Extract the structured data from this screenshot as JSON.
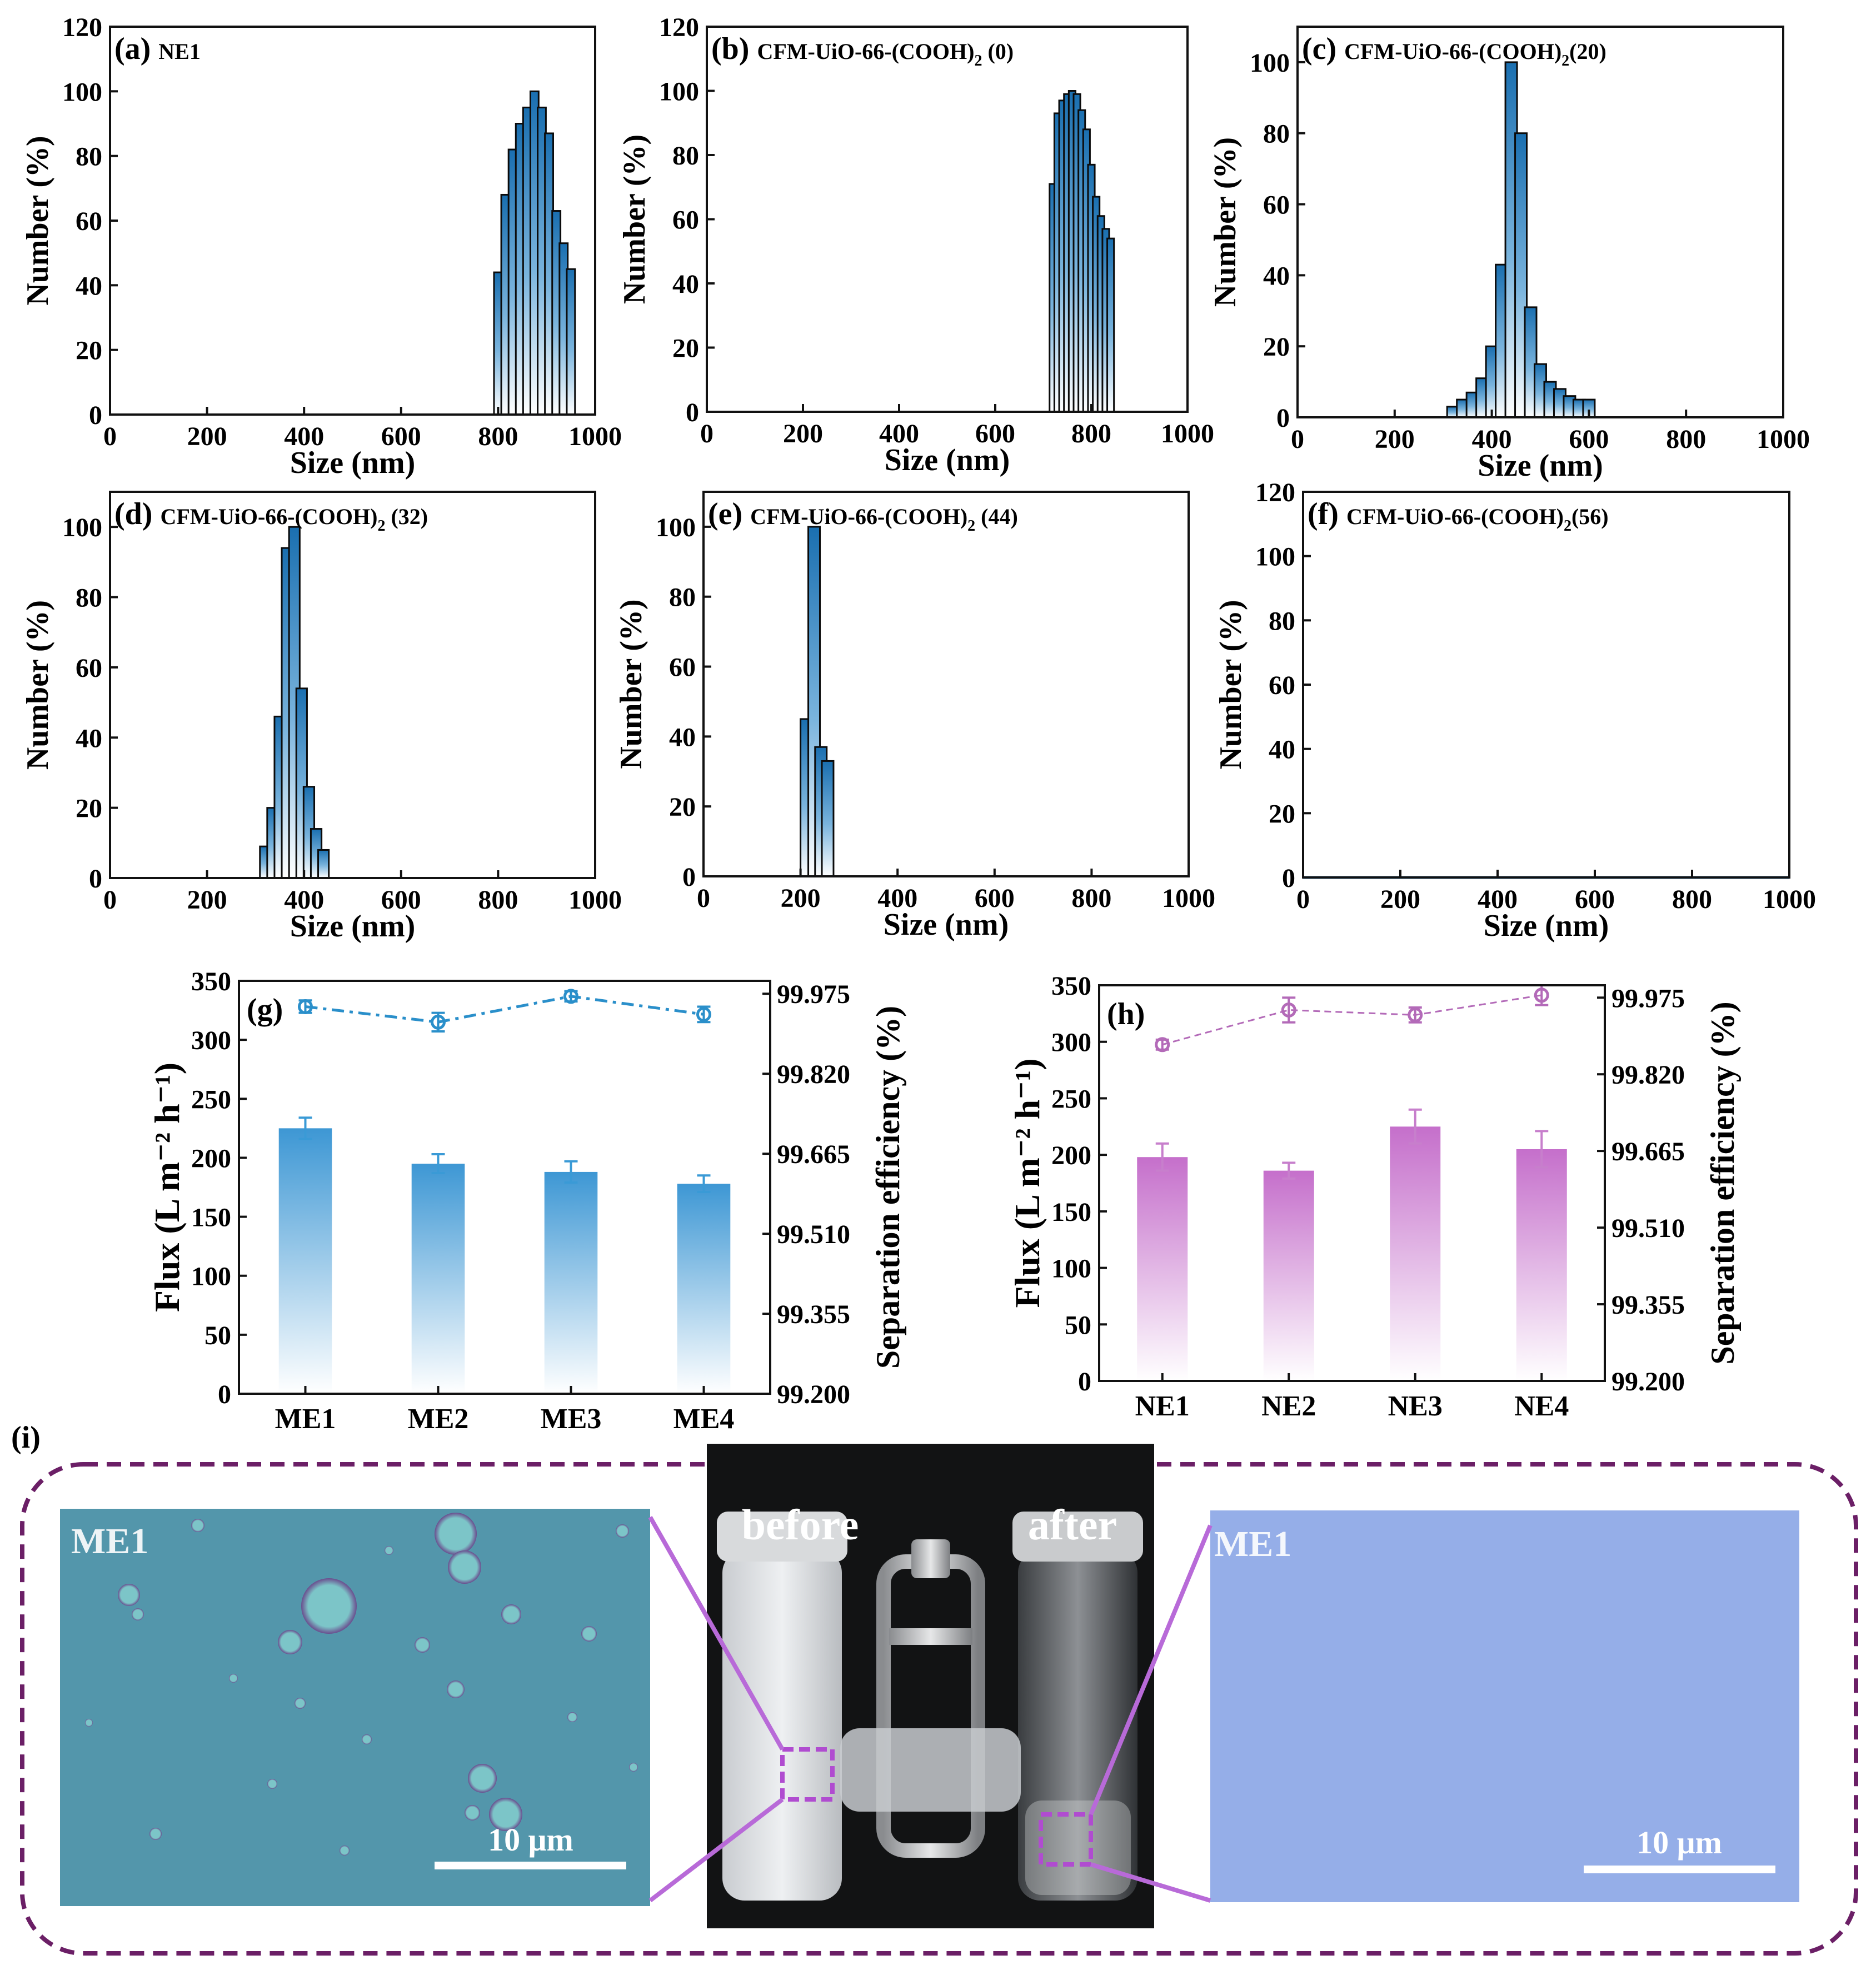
{
  "figure": {
    "accent_blue": "#1f7fc4",
    "accent_purple": "#c070c8",
    "frame_purple": "#6b1f66"
  },
  "chart_data": [
    {
      "id": "a",
      "type": "bar",
      "title": "NE1",
      "panel_label": "(a)",
      "xlabel": "Size (nm)",
      "ylabel": "Number (%)",
      "xlim": [
        0,
        1000
      ],
      "ylim": [
        0,
        120
      ],
      "xticks": [
        0,
        200,
        400,
        600,
        800,
        1000
      ],
      "yticks": [
        0,
        20,
        40,
        60,
        80,
        100,
        120
      ],
      "bar_width_nm": 17,
      "x": [
        800,
        815,
        830,
        845,
        860,
        875,
        890,
        905,
        920,
        935,
        950
      ],
      "values": [
        44,
        68,
        82,
        90,
        95,
        100,
        95,
        87,
        63,
        53,
        45
      ]
    },
    {
      "id": "b",
      "type": "bar",
      "title": "CFM-UiO-66-(COOH)",
      "subscript": "2",
      "title_suffix": " (0)",
      "panel_label": "(b)",
      "xlabel": "Size (nm)",
      "ylabel": "Number (%)",
      "xlim": [
        0,
        1000
      ],
      "ylim": [
        0,
        120
      ],
      "xticks": [
        0,
        200,
        400,
        600,
        800,
        1000
      ],
      "yticks": [
        0,
        20,
        40,
        60,
        80,
        100,
        120
      ],
      "bar_width_nm": 14,
      "x": [
        720,
        730,
        740,
        750,
        760,
        770,
        780,
        790,
        800,
        810,
        820,
        830,
        840
      ],
      "values": [
        71,
        93,
        97,
        99,
        100,
        99,
        94,
        88,
        77,
        67,
        61,
        57,
        54
      ]
    },
    {
      "id": "c",
      "type": "bar",
      "title": "CFM-UiO-66-(COOH)",
      "subscript": "2",
      "title_suffix": "(20)",
      "panel_label": "(c)",
      "xlabel": "Size (nm)",
      "ylabel": "Number (%)",
      "xlim": [
        0,
        1000
      ],
      "ylim": [
        0,
        110
      ],
      "xticks": [
        0,
        200,
        400,
        600,
        800,
        1000
      ],
      "yticks": [
        0,
        20,
        40,
        60,
        80,
        100
      ],
      "bar_width_nm": 24,
      "x": [
        320,
        340,
        360,
        380,
        400,
        420,
        440,
        460,
        480,
        500,
        520,
        540,
        560,
        580,
        600
      ],
      "values": [
        3,
        5,
        7,
        11,
        20,
        43,
        100,
        80,
        31,
        15,
        10,
        8,
        6,
        5,
        5
      ]
    },
    {
      "id": "d",
      "type": "bar",
      "title": "CFM-UiO-66-(COOH)",
      "subscript": "2",
      "title_suffix": " (32)",
      "panel_label": "(d)",
      "xlabel": "Size (nm)",
      "ylabel": "Number (%)",
      "xlim": [
        0,
        1000
      ],
      "ylim": [
        0,
        110
      ],
      "xticks": [
        0,
        200,
        400,
        600,
        800,
        1000
      ],
      "yticks": [
        0,
        20,
        40,
        60,
        80,
        100
      ],
      "bar_width_nm": 22,
      "x": [
        320,
        335,
        350,
        365,
        380,
        395,
        410,
        425,
        440
      ],
      "values": [
        9,
        20,
        46,
        94,
        100,
        54,
        26,
        14,
        8
      ]
    },
    {
      "id": "e",
      "type": "bar",
      "title": "CFM-UiO-66-(COOH)",
      "subscript": "2",
      "title_suffix": " (44)",
      "panel_label": "(e)",
      "xlabel": "Size (nm)",
      "ylabel": "Number (%)",
      "xlim": [
        0,
        1000
      ],
      "ylim": [
        0,
        110
      ],
      "xticks": [
        0,
        200,
        400,
        600,
        800,
        1000
      ],
      "yticks": [
        0,
        20,
        40,
        60,
        80,
        100
      ],
      "bar_width_nm": 24,
      "x": [
        212,
        228,
        242,
        256
      ],
      "values": [
        45,
        100,
        37,
        33
      ]
    },
    {
      "id": "f",
      "type": "line",
      "title": "CFM-UiO-66-(COOH)",
      "subscript": "2",
      "title_suffix": "(56)",
      "panel_label": "(f)",
      "xlabel": "Size (nm)",
      "ylabel": "Number (%)",
      "xlim": [
        0,
        1000
      ],
      "ylim": [
        0,
        120
      ],
      "xticks": [
        0,
        200,
        400,
        600,
        800,
        1000
      ],
      "yticks": [
        0,
        20,
        40,
        60,
        80,
        100,
        120
      ],
      "x": [
        0,
        1000
      ],
      "values": [
        0,
        0
      ]
    },
    {
      "id": "g",
      "type": "bar+line",
      "panel_label": "(g)",
      "categories": [
        "ME1",
        "ME2",
        "ME3",
        "ME4"
      ],
      "ylabel": "Flux (L m⁻² h⁻¹)",
      "ylim": [
        0,
        350
      ],
      "yticks": [
        0,
        50,
        100,
        150,
        200,
        250,
        300,
        350
      ],
      "y2label": "Separation efficiency (%)",
      "y2lim": [
        99.2,
        100.0
      ],
      "y2ticks": [
        "99.200",
        "99.355",
        "99.510",
        "99.665",
        "99.820",
        "99.975"
      ],
      "series": [
        {
          "name": "Flux",
          "values": [
            225,
            195,
            188,
            178
          ],
          "errors": [
            9,
            8,
            9,
            7
          ]
        },
        {
          "name": "Separation efficiency",
          "values": [
            99.95,
            99.92,
            99.97,
            99.935
          ],
          "errors": [
            0.012,
            0.018,
            0.01,
            0.015
          ]
        }
      ]
    },
    {
      "id": "h",
      "type": "bar+line",
      "panel_label": "(h)",
      "categories": [
        "NE1",
        "NE2",
        "NE3",
        "NE4"
      ],
      "ylabel": "Flux (L m⁻² h⁻¹)",
      "ylim": [
        0,
        350
      ],
      "yticks": [
        0,
        50,
        100,
        150,
        200,
        250,
        300,
        350
      ],
      "y2label": "Separation efficiency (%)",
      "y2lim": [
        99.2,
        100.0
      ],
      "y2ticks": [
        "99.200",
        "99.355",
        "99.510",
        "99.665",
        "99.820",
        "99.975"
      ],
      "series": [
        {
          "name": "Flux",
          "values": [
            198,
            186,
            225,
            205
          ],
          "errors": [
            12,
            7,
            15,
            16
          ]
        },
        {
          "name": "Separation efficiency",
          "values": [
            99.88,
            99.95,
            99.94,
            99.98
          ],
          "errors": [
            0.01,
            0.025,
            0.015,
            0.02
          ]
        }
      ]
    }
  ],
  "panel_i": {
    "label": "(i)",
    "left_label": "ME1",
    "right_label": "ME1",
    "before_label": "before",
    "after_label": "after",
    "scale_left": "10 μm",
    "scale_right": "10 μm"
  }
}
